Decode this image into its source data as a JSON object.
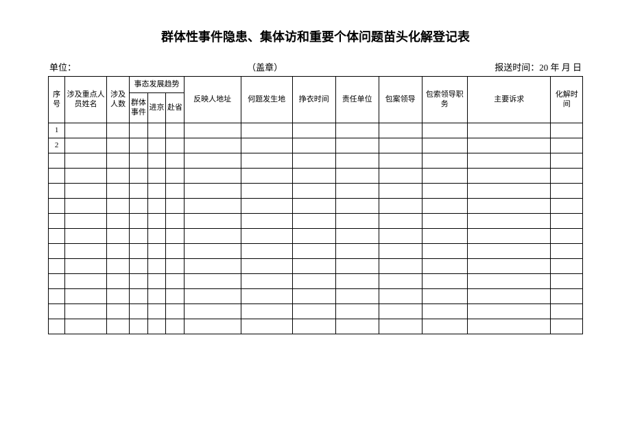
{
  "title": "群体性事件隐患、集体访和重要个体问题苗头化解登记表",
  "meta": {
    "unit_label": "单位：",
    "seal_label": "（盖章）",
    "report_label": "报送时间：20 年 月 日"
  },
  "columns": {
    "c1": "序号",
    "c2": "涉及重点人员姓名",
    "c3": "涉及人数",
    "c4_group": "事态发展趋势",
    "c4a": "群体事件",
    "c4b": "进京",
    "c4c": "赴省",
    "c5": "反映人地址",
    "c6": "何题发生地",
    "c7": "挣衣时间",
    "c8": "责任单位",
    "c9": "包案领导",
    "c10": "包索领导职务",
    "c11": "主要诉求",
    "c12": "化解时间"
  },
  "widths": {
    "c1": 22,
    "c2": 55,
    "c3": 30,
    "c4a": 24,
    "c4b": 24,
    "c4c": 24,
    "c5": 75,
    "c6": 68,
    "c7": 57,
    "c8": 57,
    "c9": 57,
    "c10": 60,
    "c11": 110,
    "c12": 42
  },
  "rows": [
    {
      "n": "1"
    },
    {
      "n": "2"
    },
    {
      "n": ""
    },
    {
      "n": ""
    },
    {
      "n": ""
    },
    {
      "n": ""
    },
    {
      "n": ""
    },
    {
      "n": ""
    },
    {
      "n": ""
    },
    {
      "n": ""
    },
    {
      "n": ""
    },
    {
      "n": ""
    },
    {
      "n": ""
    },
    {
      "n": ""
    }
  ]
}
